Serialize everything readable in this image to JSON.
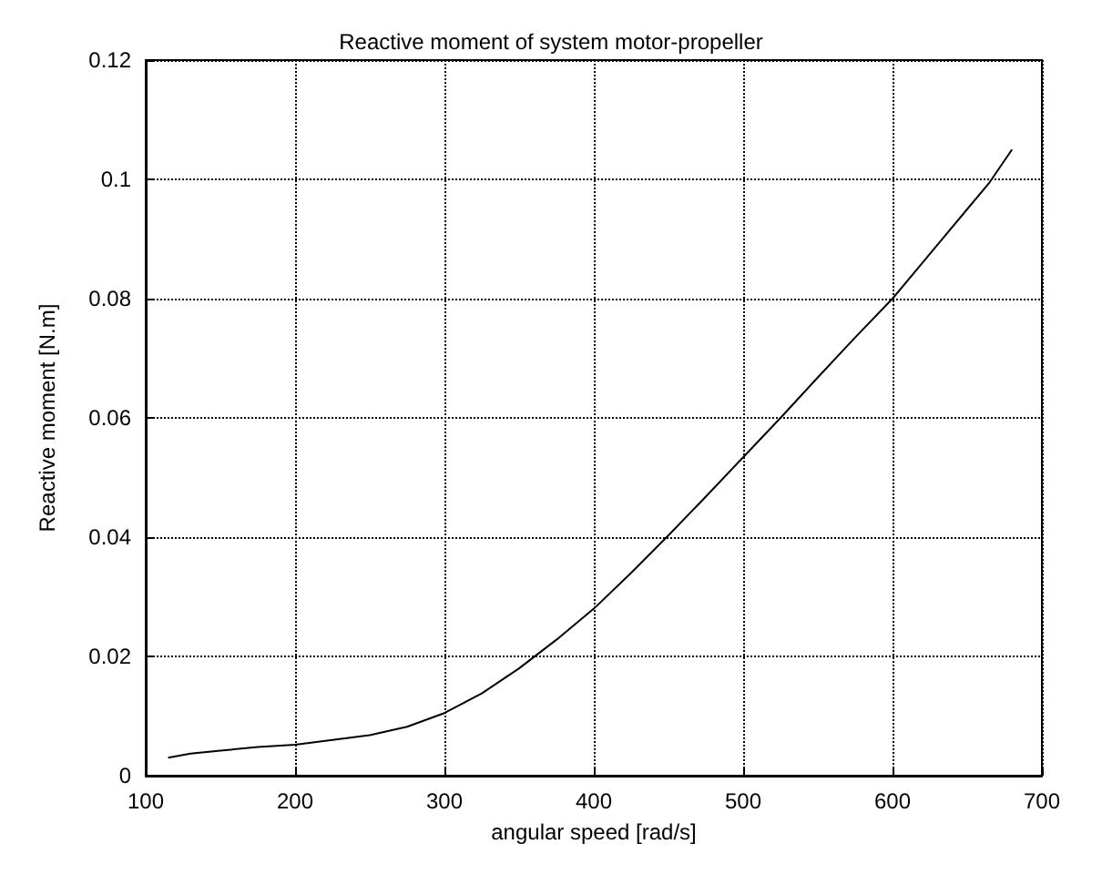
{
  "chart_data": {
    "type": "line",
    "title": "Reactive moment of system motor-propeller",
    "xlabel": "angular speed [rad/s]",
    "ylabel": "Reactive moment [N.m]",
    "x": [
      115,
      130,
      150,
      175,
      200,
      225,
      250,
      275,
      300,
      325,
      350,
      375,
      400,
      425,
      450,
      475,
      500,
      525,
      550,
      575,
      600,
      625,
      650,
      665,
      680
    ],
    "series": [
      {
        "color": "#000000",
        "values": [
          0.003,
          0.0037,
          0.0042,
          0.0048,
          0.0052,
          0.006,
          0.0068,
          0.0082,
          0.0105,
          0.0138,
          0.018,
          0.0228,
          0.028,
          0.034,
          0.0403,
          0.0468,
          0.0534,
          0.06,
          0.0668,
          0.0735,
          0.08,
          0.0875,
          0.095,
          0.0995,
          0.105
        ]
      }
    ],
    "xlim": [
      100,
      700
    ],
    "ylim": [
      0,
      0.12
    ],
    "xticks": [
      100,
      200,
      300,
      400,
      500,
      600,
      700
    ],
    "yticks": [
      0,
      0.02,
      0.04,
      0.06,
      0.08,
      0.1,
      0.12
    ],
    "grid": true,
    "marker": "none",
    "line_style": "solid"
  }
}
